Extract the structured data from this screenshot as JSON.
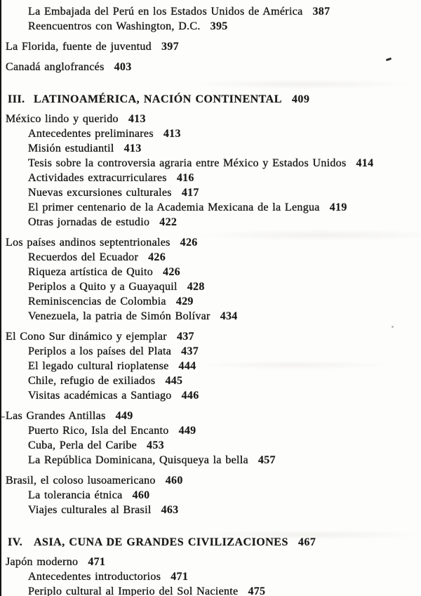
{
  "page": {
    "background_color": "#fdfdfb",
    "text_color": "#1a1a1a",
    "edge_line_color": "#141414"
  },
  "toc": {
    "entries": [
      {
        "level": "sub",
        "text": "La Embajada del Perú en los Estados Unidos de América",
        "page": "387",
        "gap": "none"
      },
      {
        "level": "sub",
        "text": "Reencuentros con Washington, D.C.",
        "page": "395",
        "gap": "none"
      },
      {
        "level": "top",
        "text": "La Florida, fuente de juventud",
        "page": "397",
        "gap": "group"
      },
      {
        "level": "top",
        "text": "Canadá anglofrancés",
        "page": "403",
        "gap": "group"
      },
      {
        "level": "section",
        "numeral": "III.",
        "text": "LATINOAMÉRICA, NACIÓN CONTINENTAL",
        "page": "409",
        "gap": "section"
      },
      {
        "level": "top",
        "text": "México lindo y querido",
        "page": "413",
        "gap": "after-section"
      },
      {
        "level": "sub",
        "text": "Antecedentes preliminares",
        "page": "413",
        "gap": "none"
      },
      {
        "level": "sub",
        "text": "Misión estudiantil",
        "page": "413",
        "gap": "none"
      },
      {
        "level": "sub",
        "text": "Tesis sobre la controversia agraria entre México y Estados Unidos",
        "page": "414",
        "gap": "none"
      },
      {
        "level": "sub",
        "text": "Actividades extracurriculares",
        "page": "416",
        "gap": "none"
      },
      {
        "level": "sub",
        "text": "Nuevas excursiones culturales",
        "page": "417",
        "gap": "none"
      },
      {
        "level": "sub",
        "text": "El primer centenario de la Academia Mexicana de la Lengua",
        "page": "419",
        "gap": "none"
      },
      {
        "level": "sub",
        "text": "Otras jornadas de estudio",
        "page": "422",
        "gap": "none"
      },
      {
        "level": "top",
        "text": "Los países andinos septentrionales",
        "page": "426",
        "gap": "group"
      },
      {
        "level": "sub",
        "text": "Recuerdos del Ecuador",
        "page": "426",
        "gap": "none"
      },
      {
        "level": "sub",
        "text": "Riqueza artística de Quito",
        "page": "426",
        "gap": "none"
      },
      {
        "level": "sub",
        "text": "Periplos a Quito y a Guayaquil",
        "page": "428",
        "gap": "none"
      },
      {
        "level": "sub",
        "text": "Reminiscencias de Colombia",
        "page": "429",
        "gap": "none"
      },
      {
        "level": "sub",
        "text": "Venezuela, la patria de Simón Bolívar",
        "page": "434",
        "gap": "none"
      },
      {
        "level": "top",
        "text": "El Cono Sur dinámico y ejemplar",
        "page": "437",
        "gap": "group"
      },
      {
        "level": "sub",
        "text": "Periplos a los países del Plata",
        "page": "437",
        "gap": "none"
      },
      {
        "level": "sub",
        "text": "El legado cultural rioplatense",
        "page": "444",
        "gap": "none"
      },
      {
        "level": "sub",
        "text": "Chile, refugio de exiliados",
        "page": "445",
        "gap": "none"
      },
      {
        "level": "sub",
        "text": "Visitas académicas a Santiago",
        "page": "446",
        "gap": "none"
      },
      {
        "level": "top",
        "text": "Las Grandes Antillas",
        "page": "449",
        "gap": "group"
      },
      {
        "level": "sub",
        "text": "Puerto Rico, Isla del Encanto",
        "page": "449",
        "gap": "none"
      },
      {
        "level": "sub",
        "text": "Cuba, Perla del Caribe",
        "page": "453",
        "gap": "none"
      },
      {
        "level": "sub",
        "text": "La República Dominicana, Quisqueya la bella",
        "page": "457",
        "gap": "none"
      },
      {
        "level": "top",
        "text": "Brasil, el coloso lusoamericano",
        "page": "460",
        "gap": "group"
      },
      {
        "level": "sub",
        "text": "La tolerancia étnica",
        "page": "460",
        "gap": "none"
      },
      {
        "level": "sub",
        "text": "Viajes culturales al Brasil",
        "page": "463",
        "gap": "none"
      },
      {
        "level": "section",
        "numeral": "IV.",
        "text": "ASIA, CUNA DE GRANDES CIVILIZACIONES",
        "page": "467",
        "gap": "section"
      },
      {
        "level": "top",
        "text": "Japón moderno",
        "page": "471",
        "gap": "after-section"
      },
      {
        "level": "sub",
        "text": "Antecedentes introductorios",
        "page": "471",
        "gap": "none"
      },
      {
        "level": "sub",
        "text": "Periplo cultural al Imperio del Sol Naciente",
        "page": "475",
        "gap": "none"
      }
    ]
  }
}
